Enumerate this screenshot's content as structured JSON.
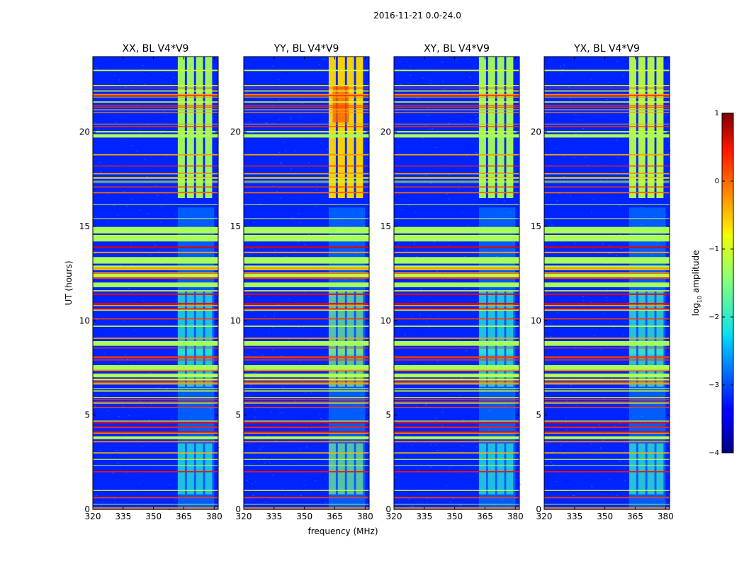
{
  "figure": {
    "suptitle": "2016-11-21 0.0-24.0",
    "xlabel": "frequency (MHz)",
    "ylabel": "UT (hours)"
  },
  "chart_data": {
    "type": "heatmap",
    "title": "2016-11-21 0.0-24.0",
    "xlabel": "frequency (MHz)",
    "ylabel": "UT (hours)",
    "xlim": [
      320,
      382
    ],
    "ylim": [
      0,
      24
    ],
    "xticks": [
      320,
      335,
      350,
      365,
      380
    ],
    "yticks": [
      0,
      5,
      10,
      15,
      20
    ],
    "panels": [
      {
        "title": "XX, BL V4*V9",
        "signal_level": -1.3
      },
      {
        "title": "YY, BL V4*V9",
        "signal_level": -0.7
      },
      {
        "title": "XY, BL V4*V9",
        "signal_level": -1.3
      },
      {
        "title": "YX, BL V4*V9",
        "signal_level": -1.2
      }
    ],
    "signal_band_mhz": [
      362,
      380
    ],
    "background_level": -3.2,
    "colorbar": {
      "label_prefix": "log",
      "label_sub": "10",
      "label_suffix": " amplitude",
      "min": -4,
      "max": 1,
      "ticks": [
        {
          "value": -4,
          "label": "−4"
        },
        {
          "value": -3,
          "label": "−3"
        },
        {
          "value": -2,
          "label": "−2"
        },
        {
          "value": -1,
          "label": "−1"
        },
        {
          "value": 0,
          "label": "0"
        },
        {
          "value": 1,
          "label": "1"
        }
      ]
    }
  }
}
